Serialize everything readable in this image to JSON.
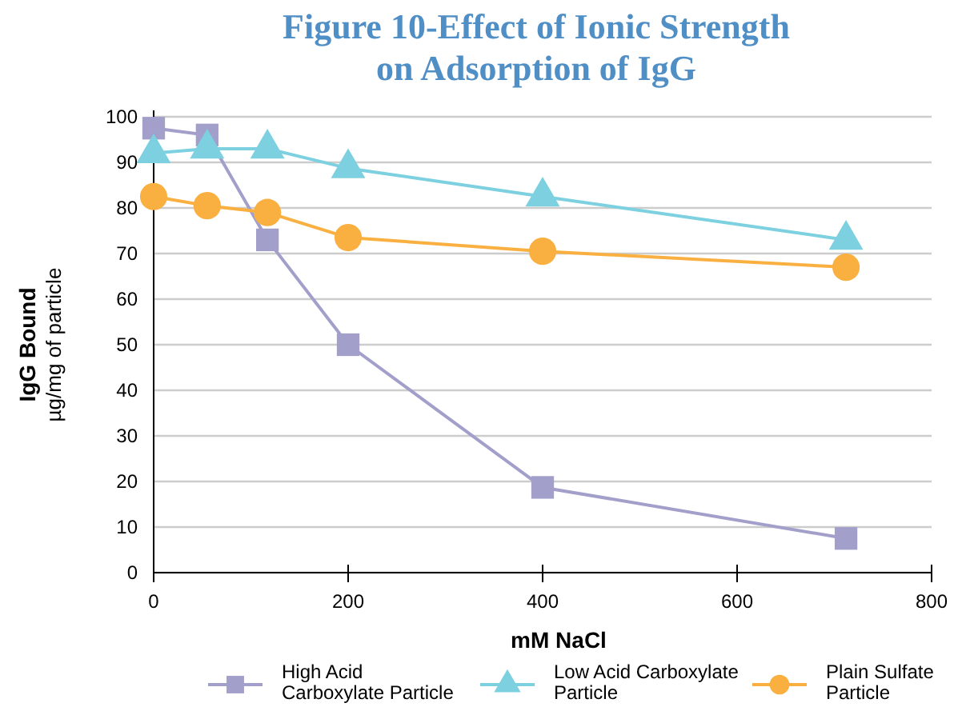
{
  "chart_data": {
    "type": "line",
    "title": "Figure 10-Effect of Ionic Strength\non Adsorption of IgG",
    "xlabel": "mM NaCl",
    "ylabel": "IgG Bound\nµg/mg of particle",
    "x": [
      0,
      55,
      117,
      200,
      400,
      712
    ],
    "series": [
      {
        "name": "High Acid\nCarboxylate Particle",
        "color": "#a29fcb",
        "marker": "square",
        "values": [
          97.5,
          96,
          73,
          50,
          18.7,
          7.5
        ]
      },
      {
        "name": "Low Acid Carboxylate\nParticle",
        "color": "#7dd0df",
        "marker": "triangle",
        "values": [
          92,
          93,
          93,
          88.7,
          82.5,
          73
        ]
      },
      {
        "name": "Plain Sulfate\nParticle",
        "color": "#f9b041",
        "marker": "circle",
        "values": [
          82.5,
          80.5,
          79,
          73.5,
          70.5,
          67
        ]
      }
    ],
    "xlim": [
      0,
      800
    ],
    "xticks": [
      0,
      200,
      400,
      600,
      800
    ],
    "ylim": [
      0,
      100
    ],
    "yticks": [
      0,
      10,
      20,
      30,
      40,
      50,
      60,
      70,
      80,
      90,
      100
    ],
    "grid": "y",
    "legend": "bottom"
  }
}
